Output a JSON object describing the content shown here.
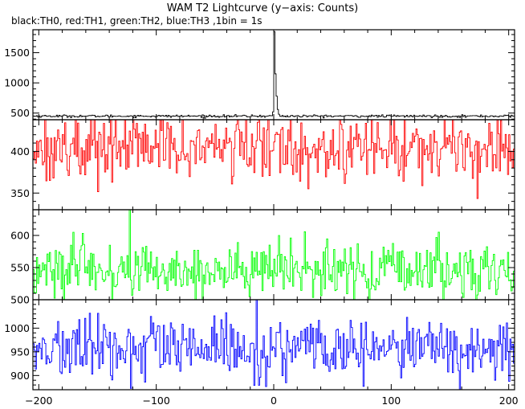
{
  "chart_data": {
    "type": "line",
    "title": "WAM T2 Lightcurve (y−axis: Counts)",
    "subtitle": "black:TH0, red:TH1, green:TH2, blue:TH3 ,1bin = 1s",
    "x_ticks": [
      -200,
      -100,
      0,
      100,
      200
    ],
    "xlim": [
      -205,
      205
    ],
    "panels": [
      {
        "name": "TH0",
        "color": "#000000",
        "ylim": [
          390,
          1880
        ],
        "y_ticks": [
          500,
          1000,
          1500
        ],
        "baseline": 450,
        "noise": 10,
        "spike": {
          "x": [
            -1,
            0,
            1,
            2,
            3,
            4
          ],
          "y": [
            520,
            1850,
            1150,
            780,
            560,
            480
          ]
        }
      },
      {
        "name": "TH1",
        "color": "#ff0000",
        "ylim": [
          330,
          438
        ],
        "y_ticks": [
          350,
          400
        ],
        "baseline": 405,
        "noise": 20
      },
      {
        "name": "TH2",
        "color": "#00ff00",
        "ylim": [
          500,
          640
        ],
        "y_ticks": [
          500,
          550,
          600
        ],
        "baseline": 545,
        "noise": 23
      },
      {
        "name": "TH3",
        "color": "#0000ff",
        "ylim": [
          870,
          1060
        ],
        "y_ticks": [
          900,
          950,
          1000
        ],
        "baseline": 955,
        "noise": 32
      }
    ]
  }
}
